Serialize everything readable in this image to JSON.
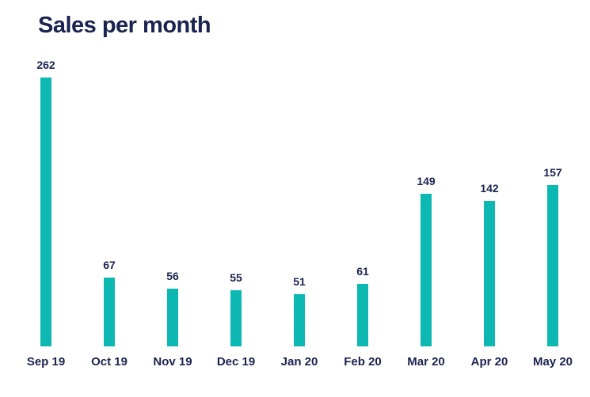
{
  "page": {
    "background": "#ffffff"
  },
  "colors": {
    "bar": "#0db8b2",
    "text": "#1b2350"
  },
  "chart_data": {
    "type": "bar",
    "title": "Sales per month",
    "categories": [
      "Sep 19",
      "Oct 19",
      "Nov 19",
      "Dec 19",
      "Jan 20",
      "Feb 20",
      "Mar 20",
      "Apr 20",
      "May 20"
    ],
    "values": [
      262,
      67,
      56,
      55,
      51,
      61,
      149,
      142,
      157
    ],
    "xlabel": "",
    "ylabel": "",
    "ylim": [
      0,
      262
    ],
    "grid": false,
    "legend": false,
    "value_labels_shown": true,
    "bar_color": "#0db8b2",
    "label_color": "#1b2350"
  }
}
